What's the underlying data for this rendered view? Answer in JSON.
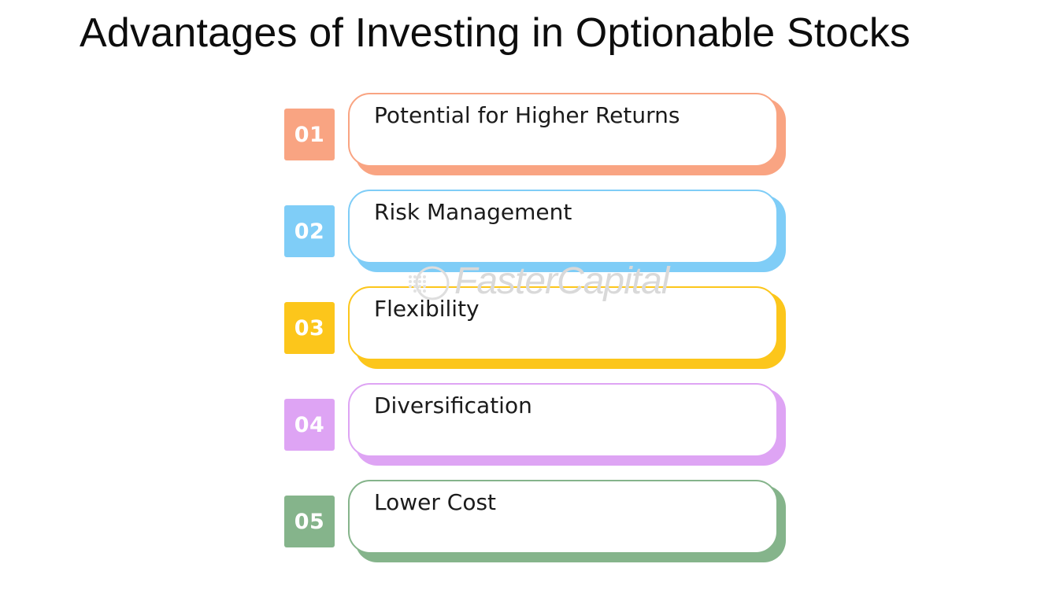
{
  "title": "Advantages of Investing in Optionable Stocks",
  "items": [
    {
      "number": "01",
      "label": "Potential for Higher Returns",
      "color": "#f9a482"
    },
    {
      "number": "02",
      "label": "Risk Management",
      "color": "#7fcdf7"
    },
    {
      "number": "03",
      "label": "Flexibility",
      "color": "#fcc61b"
    },
    {
      "number": "04",
      "label": "Diversification",
      "color": "#dea4f4"
    },
    {
      "number": "05",
      "label": "Lower Cost",
      "color": "#85b48b"
    }
  ],
  "watermark": {
    "text": "FasterCapital",
    "icon": "fastercapital-logo-icon"
  }
}
